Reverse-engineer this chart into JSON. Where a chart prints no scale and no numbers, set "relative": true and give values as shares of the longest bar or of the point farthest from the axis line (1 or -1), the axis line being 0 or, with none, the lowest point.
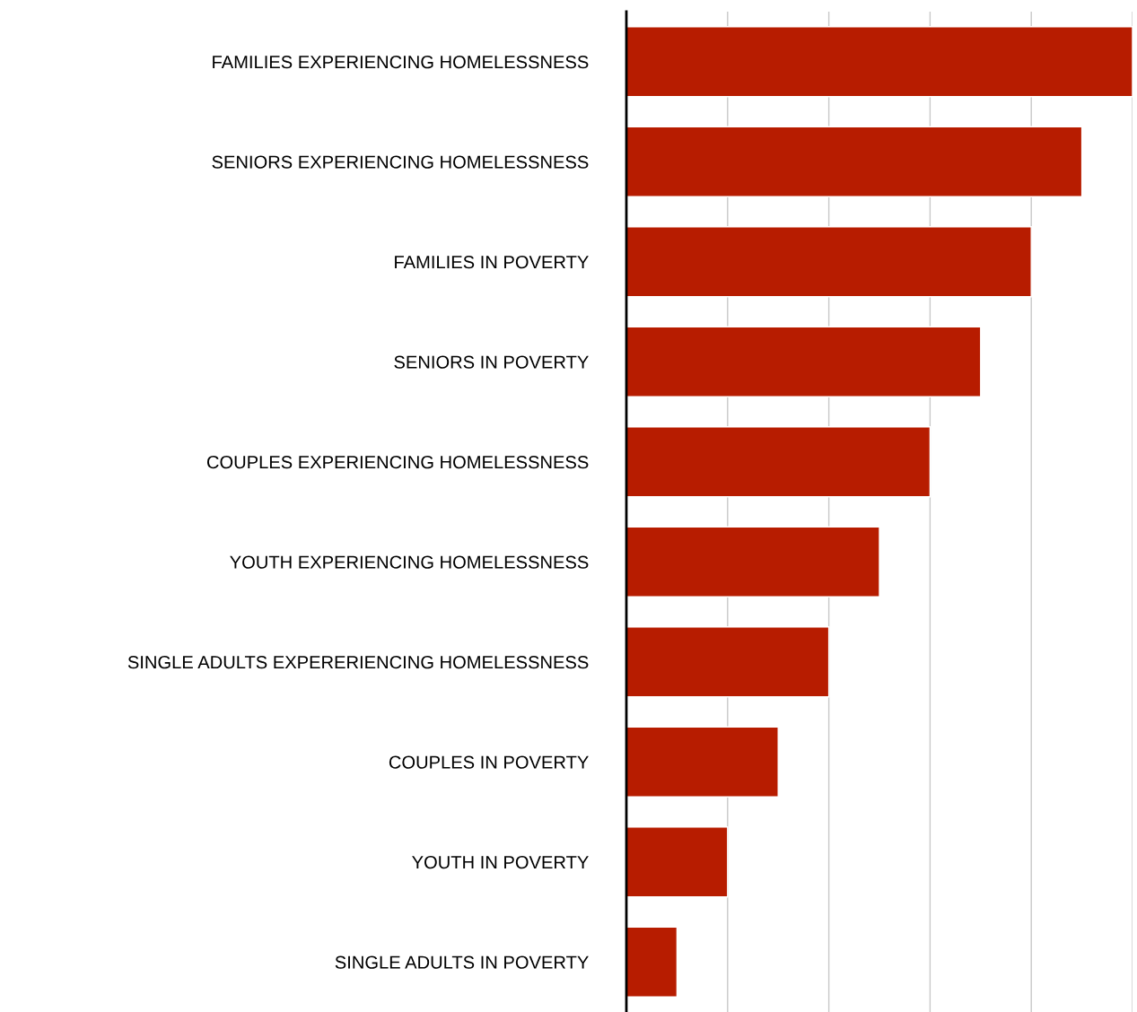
{
  "chart_data": {
    "type": "bar",
    "orientation": "horizontal",
    "relative": true,
    "grid": "x",
    "color": "#b71c00",
    "categories": [
      "FAMILIES EXPERIENCING HOMELESSNESS",
      "SENIORS EXPERIENCING HOMELESSNESS",
      "FAMILIES IN POVERTY",
      "SENIORS IN POVERTY",
      "COUPLES EXPERIENCING HOMELESSNESS",
      "YOUTH EXPERIENCING HOMELESSNESS",
      "SINGLE ADULTS EXPERERIENCING HOMELESSNESS",
      "COUPLES IN POVERTY",
      "YOUTH IN POVERTY",
      "SINGLE ADULTS IN POVERTY"
    ],
    "values": [
      1.0,
      0.9,
      0.8,
      0.7,
      0.6,
      0.5,
      0.4,
      0.3,
      0.2,
      0.1
    ]
  }
}
